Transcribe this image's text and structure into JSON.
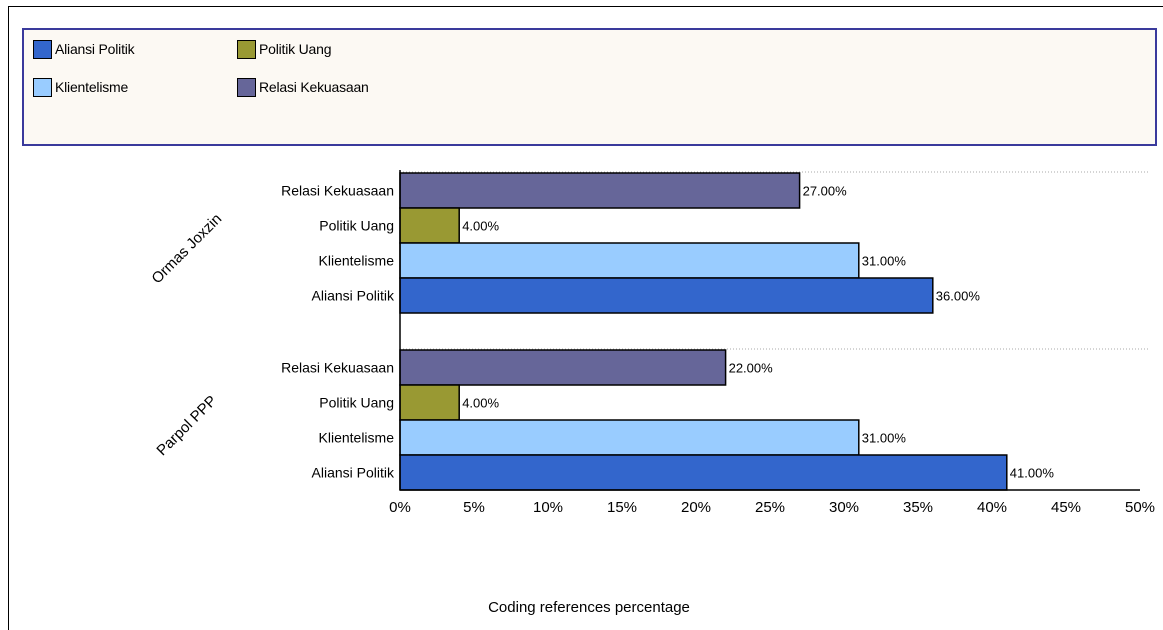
{
  "colors": {
    "aliansi_politik": "#3366cc",
    "klientelisme": "#99ccff",
    "politik_uang": "#999933",
    "relasi_kekuasaan": "#666699",
    "legend_border": "#3a3a9c",
    "legend_bg": "#fcf9f3"
  },
  "legend": {
    "items": [
      {
        "label": "Aliansi Politik",
        "color": "#3366cc"
      },
      {
        "label": "Politik Uang",
        "color": "#999933"
      },
      {
        "label": "Klientelisme",
        "color": "#99ccff"
      },
      {
        "label": "Relasi Kekuasaan",
        "color": "#666699"
      }
    ]
  },
  "chart_data": {
    "type": "bar",
    "orientation": "horizontal",
    "xlabel": "Coding references percentage",
    "ylabel": "",
    "xlim": [
      0,
      50
    ],
    "xticks": [
      "0%",
      "5%",
      "10%",
      "15%",
      "20%",
      "25%",
      "30%",
      "35%",
      "40%",
      "45%",
      "50%"
    ],
    "groups": [
      {
        "name": "Ormas Joxzin",
        "bars": [
          {
            "category": "Relasi Kekuasaan",
            "value": 27,
            "label": "27.00%",
            "color": "#666699"
          },
          {
            "category": "Politik Uang",
            "value": 4,
            "label": "4.00%",
            "color": "#999933"
          },
          {
            "category": "Klientelisme",
            "value": 31,
            "label": "31.00%",
            "color": "#99ccff"
          },
          {
            "category": "Aliansi Politik",
            "value": 36,
            "label": "36.00%",
            "color": "#3366cc"
          }
        ]
      },
      {
        "name": "Parpol PPP",
        "bars": [
          {
            "category": "Relasi Kekuasaan",
            "value": 22,
            "label": "22.00%",
            "color": "#666699"
          },
          {
            "category": "Politik Uang",
            "value": 4,
            "label": "4.00%",
            "color": "#999933"
          },
          {
            "category": "Klientelisme",
            "value": 31,
            "label": "31.00%",
            "color": "#99ccff"
          },
          {
            "category": "Aliansi Politik",
            "value": 41,
            "label": "41.00%",
            "color": "#3366cc"
          }
        ]
      }
    ],
    "legend_position": "top",
    "grid": false
  }
}
